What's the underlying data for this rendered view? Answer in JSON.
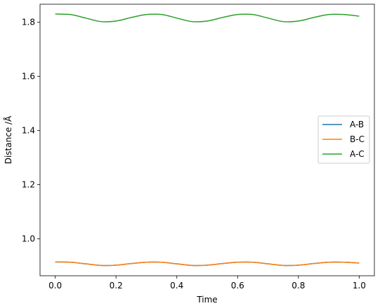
{
  "chart_data": {
    "type": "line",
    "title": "",
    "xlabel": "Time",
    "ylabel": "Distance /Å",
    "xlim": [
      -0.05,
      1.05
    ],
    "ylim": [
      0.864,
      1.8661
    ],
    "xticks": [
      0.0,
      0.2,
      0.4,
      0.6,
      0.8,
      1.0
    ],
    "xtick_labels": [
      "0.0",
      "0.2",
      "0.4",
      "0.6",
      "0.8",
      "1.0"
    ],
    "yticks": [
      1.0,
      1.2,
      1.4,
      1.6,
      1.8
    ],
    "ytick_labels": [
      "1.0",
      "1.2",
      "1.4",
      "1.6",
      "1.8"
    ],
    "grid": false,
    "legend_position": "center-right",
    "x": [
      0.0,
      0.05,
      0.1,
      0.15,
      0.2,
      0.25,
      0.3,
      0.35,
      0.4,
      0.45,
      0.5,
      0.55,
      0.6,
      0.65,
      0.7,
      0.75,
      0.8,
      0.85,
      0.9,
      0.95,
      1.0
    ],
    "series": [
      {
        "name": "A-B",
        "color": "#1f77b4",
        "values": [
          0.915,
          0.914,
          0.908,
          0.902,
          0.903,
          0.909,
          0.914,
          0.914,
          0.908,
          0.902,
          0.903,
          0.909,
          0.914,
          0.914,
          0.908,
          0.902,
          0.903,
          0.909,
          0.914,
          0.914,
          0.911
        ]
      },
      {
        "name": "B-C",
        "color": "#ff7f0e",
        "values": [
          0.915,
          0.914,
          0.908,
          0.902,
          0.903,
          0.909,
          0.914,
          0.914,
          0.908,
          0.902,
          0.903,
          0.909,
          0.914,
          0.914,
          0.908,
          0.902,
          0.903,
          0.909,
          0.914,
          0.914,
          0.911
        ]
      },
      {
        "name": "A-C",
        "color": "#2ca02c",
        "values": [
          1.83,
          1.828,
          1.815,
          1.802,
          1.804,
          1.817,
          1.828,
          1.828,
          1.815,
          1.802,
          1.804,
          1.817,
          1.828,
          1.828,
          1.815,
          1.802,
          1.804,
          1.817,
          1.828,
          1.828,
          1.822
        ]
      }
    ]
  }
}
